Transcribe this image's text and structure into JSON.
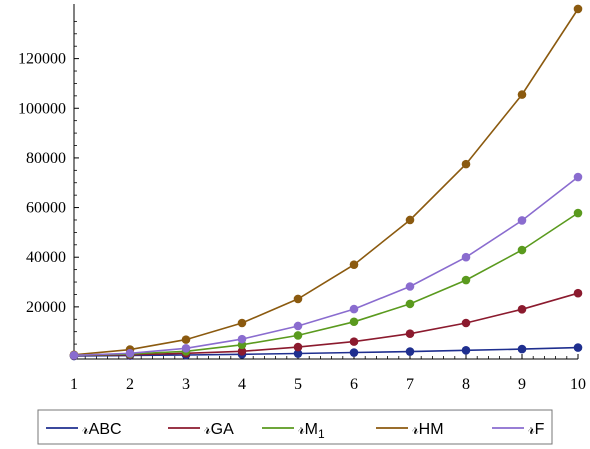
{
  "chart_data": {
    "type": "line",
    "title": "",
    "xlabel": "",
    "ylabel": "",
    "x": [
      1,
      2,
      3,
      4,
      5,
      6,
      7,
      8,
      9,
      10
    ],
    "xlim": [
      1,
      10
    ],
    "ylim": [
      -1000,
      142000
    ],
    "x_ticks": [
      "1",
      "2",
      "3",
      "4",
      "5",
      "6",
      "7",
      "8",
      "9",
      "10"
    ],
    "y_ticks": [
      20000,
      40000,
      60000,
      80000,
      100000,
      120000
    ],
    "y_tick_labels": [
      "20000",
      "40000",
      "60000",
      "80000",
      "100000",
      "120000"
    ],
    "grid": false,
    "legend_position": "bottom",
    "series": [
      {
        "name": "𝓇ABC",
        "color": "#1f2f8f",
        "values": [
          200,
          400,
          600,
          900,
          1200,
          1600,
          2000,
          2500,
          3000,
          3600
        ]
      },
      {
        "name": "𝓇GA",
        "color": "#8b1a2e",
        "values": [
          400,
          700,
          1300,
          2100,
          3800,
          6000,
          9200,
          13500,
          19000,
          25500
        ]
      },
      {
        "name": "𝓇M",
        "name_subscript": "1",
        "color": "#5a9a1e",
        "values": [
          500,
          1000,
          2100,
          4700,
          8500,
          14000,
          21200,
          30800,
          42900,
          57800
        ]
      },
      {
        "name": "𝓇HM",
        "color": "#8b5a0f",
        "values": [
          700,
          2800,
          6800,
          13500,
          23200,
          37000,
          55000,
          77500,
          105500,
          140000
        ]
      },
      {
        "name": "𝓇F",
        "color": "#8a6ccf",
        "values": [
          500,
          1300,
          3300,
          7000,
          12300,
          19100,
          28200,
          40000,
          54800,
          72300
        ]
      }
    ]
  }
}
